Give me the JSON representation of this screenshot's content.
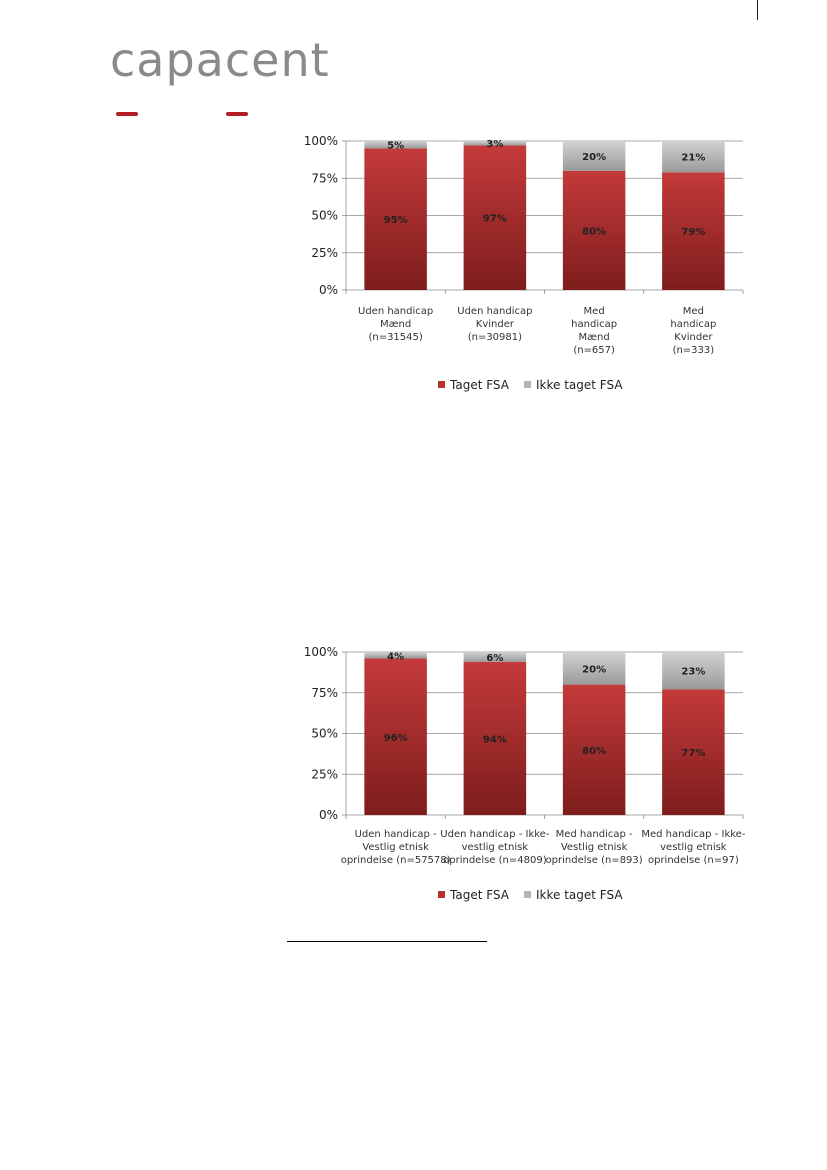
{
  "logo": {
    "text": "capacent"
  },
  "chart_data": [
    {
      "type": "bar",
      "stacked": true,
      "categories": [
        [
          "Uden handicap",
          "Mænd",
          "(n=31545)"
        ],
        [
          "Uden handicap",
          "Kvinder",
          "(n=30981)"
        ],
        [
          "Med",
          "handicap",
          "Mænd",
          "(n=657)"
        ],
        [
          "Med",
          "handicap",
          "Kvinder",
          "(n=333)"
        ]
      ],
      "series": [
        {
          "name": "Taget FSA",
          "values": [
            95,
            97,
            80,
            79
          ],
          "labels": [
            "95%",
            "97%",
            "80%",
            "79%"
          ]
        },
        {
          "name": "Ikke taget FSA",
          "values": [
            5,
            3,
            20,
            21
          ],
          "labels": [
            "5%",
            "3%",
            "20%",
            "21%"
          ]
        }
      ],
      "ylim": [
        0,
        100
      ],
      "yticks": [
        "0%",
        "25%",
        "50%",
        "75%",
        "100%"
      ],
      "legend": "bottom",
      "grid": true,
      "colors": {
        "taget": "#b83232",
        "ikke": "#b4b4b4"
      }
    },
    {
      "type": "bar",
      "stacked": true,
      "categories": [
        [
          "Uden handicap -",
          "Vestlig etnisk",
          "oprindelse (n=57578)"
        ],
        [
          "Uden handicap - Ikke-",
          "vestlig etnisk",
          "oprindelse (n=4809)"
        ],
        [
          "Med handicap -",
          "Vestlig etnisk",
          "oprindelse (n=893)"
        ],
        [
          "Med handicap - Ikke-",
          "vestlig etnisk",
          "oprindelse (n=97)"
        ]
      ],
      "series": [
        {
          "name": "Taget FSA",
          "values": [
            96,
            94,
            80,
            77
          ],
          "labels": [
            "96%",
            "94%",
            "80%",
            "77%"
          ]
        },
        {
          "name": "Ikke taget FSA",
          "values": [
            4,
            6,
            20,
            23
          ],
          "labels": [
            "4%",
            "6%",
            "20%",
            "23%"
          ]
        }
      ],
      "ylim": [
        0,
        100
      ],
      "yticks": [
        "0%",
        "25%",
        "50%",
        "75%",
        "100%"
      ],
      "legend": "bottom",
      "grid": true,
      "colors": {
        "taget": "#b83232",
        "ikke": "#b4b4b4"
      }
    }
  ]
}
